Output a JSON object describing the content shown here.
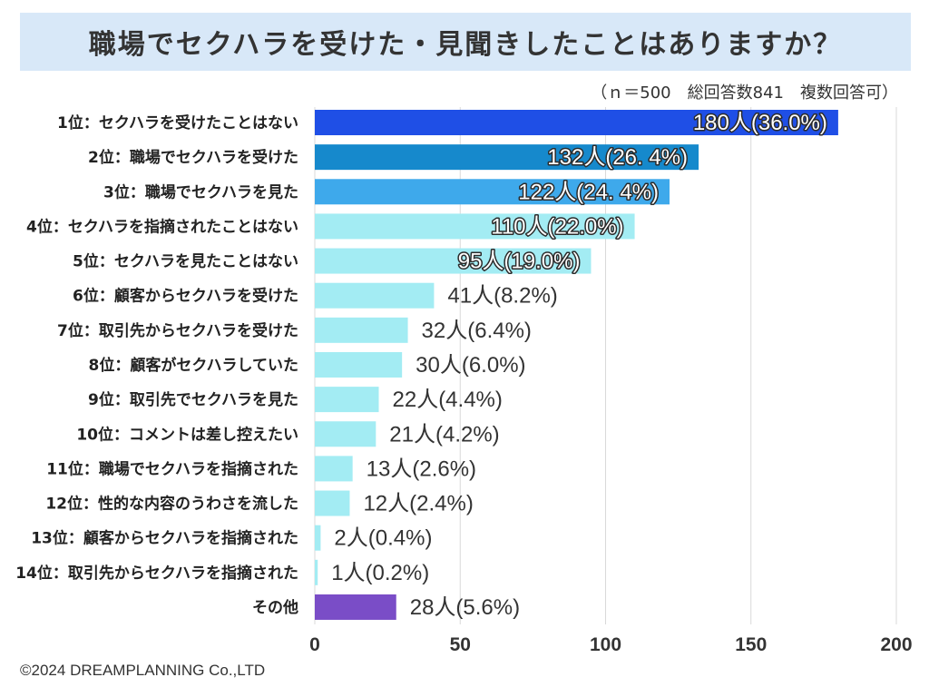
{
  "chart_data": {
    "type": "bar",
    "orientation": "horizontal",
    "title": "職場でセクハラを受けた・見聞きしたことはありますか？",
    "subtitle": "（ｎ＝500　総回答数841　複数回答可）",
    "categories": [
      "1位：セクハラを受けたことはない",
      "2位：職場でセクハラを受けた",
      "3位：職場でセクハラを見た",
      "4位：セクハラを指摘されたことはない",
      "5位：セクハラを見たことはない",
      "6位：顧客からセクハラを受けた",
      "7位：取引先からセクハラを受けた",
      "8位：顧客がセクハラしていた",
      "9位：取引先でセクハラを見た",
      "10位：コメントは差し控えたい",
      "11位：職場でセクハラを指摘された",
      "12位：性的な内容のうわさを流した",
      "13位：顧客からセクハラを指摘された",
      "14位：取引先からセクハラを指摘された",
      "その他"
    ],
    "values": [
      180,
      132,
      122,
      110,
      95,
      41,
      32,
      30,
      22,
      21,
      13,
      12,
      2,
      1,
      28
    ],
    "data_labels": [
      "180人(36.0%)",
      "132人(26. 4%)",
      "122人(24. 4%)",
      "110人(22.0%)",
      "95人(19.0%)",
      "41人(8.2%)",
      "32人(6.4%)",
      "30人(6.0%)",
      "22人(4.4%)",
      "21人(4.2%)",
      "13人(2.6%)",
      "12人(2.4%)",
      "2人(0.4%)",
      "1人(0.2%)",
      "28人(5.6%)"
    ],
    "colors": [
      "#1f4fe6",
      "#1689cc",
      "#3ea9eb",
      "#a3ecf3",
      "#a3ecf3",
      "#a3ecf3",
      "#a3ecf3",
      "#a3ecf3",
      "#a3ecf3",
      "#a3ecf3",
      "#a3ecf3",
      "#a3ecf3",
      "#a3ecf3",
      "#a3ecf3",
      "#7a4dc7"
    ],
    "xlim": [
      0,
      200
    ],
    "xticks": [
      0,
      50,
      100,
      150,
      200
    ],
    "xlabel": "",
    "ylabel": "",
    "grid": true
  },
  "copyright": "©2024 DREAMPLANNING Co.,LTD",
  "theme": {
    "title_background": "#d8e8f8",
    "gridline_color": "#d9d9d9"
  }
}
